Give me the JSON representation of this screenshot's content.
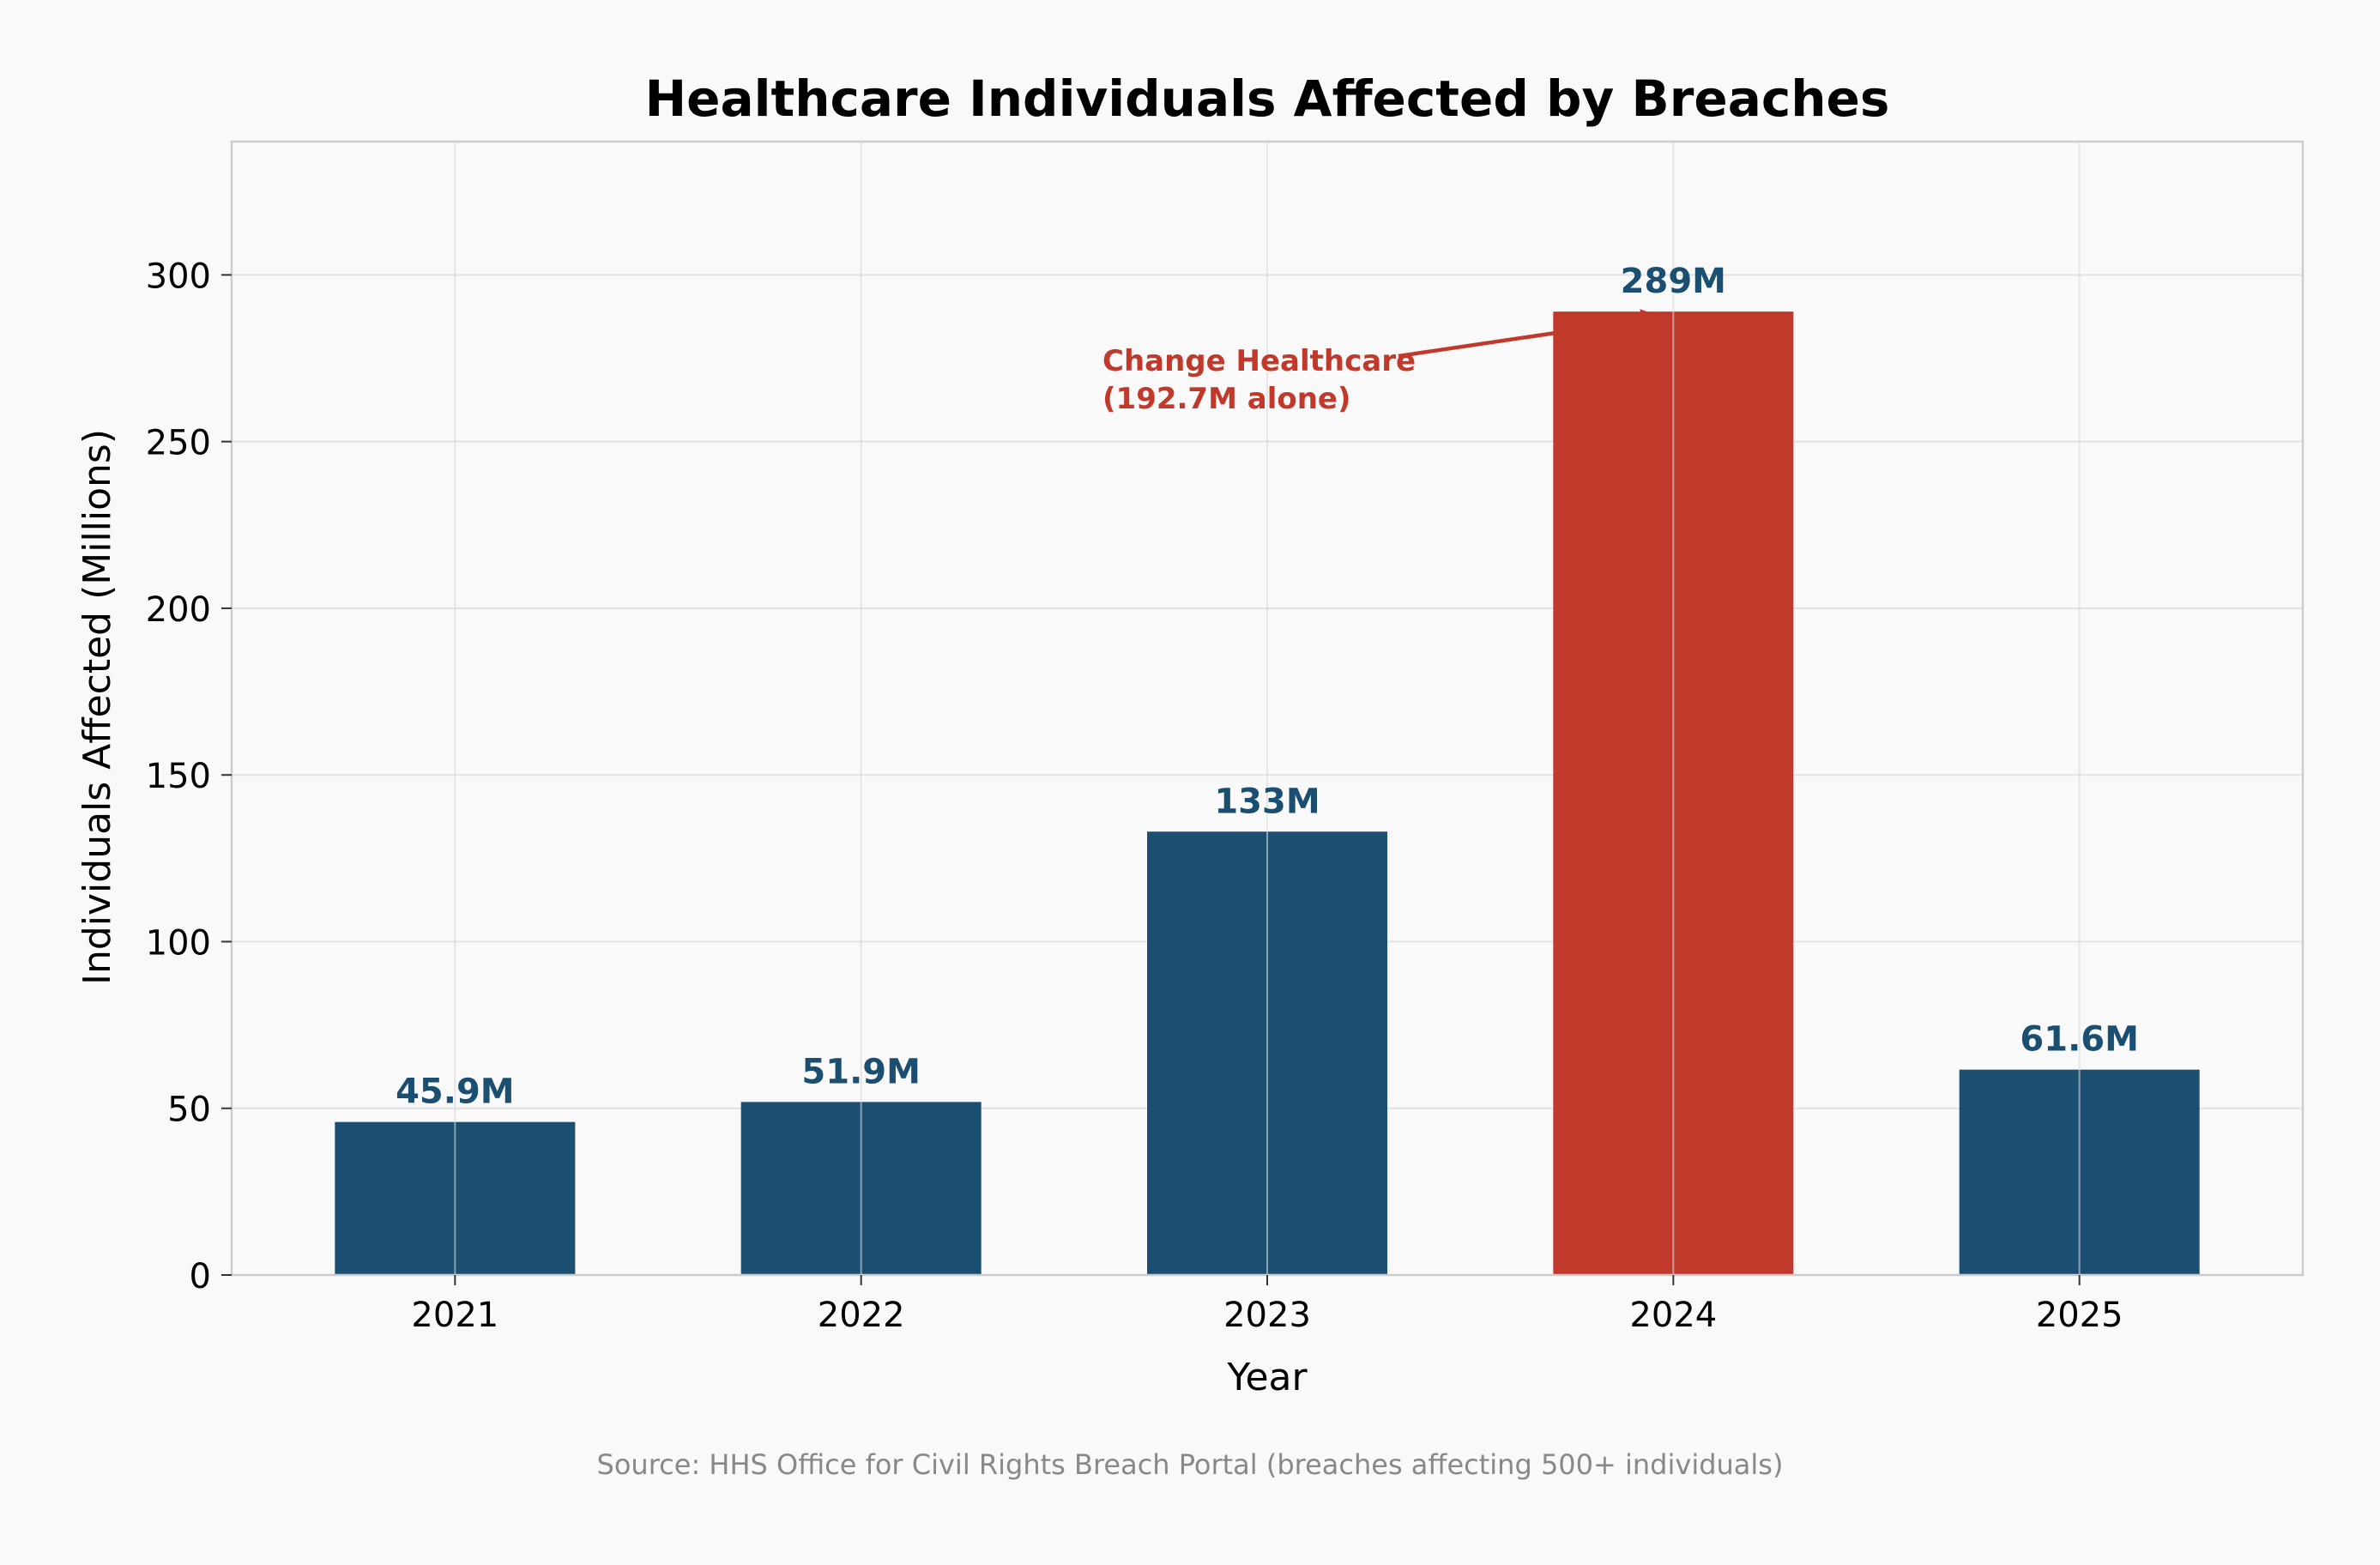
{
  "chart_data": {
    "type": "bar",
    "title": "Healthcare Individuals Affected by Breaches",
    "xlabel": "Year",
    "ylabel": "Individuals Affected (Millions)",
    "categories": [
      "2021",
      "2022",
      "2023",
      "2024",
      "2025"
    ],
    "values": [
      45.9,
      51.9,
      133,
      289,
      61.6
    ],
    "data_labels": [
      "45.9M",
      "51.9M",
      "133M",
      "289M",
      "61.6M"
    ],
    "bar_colors": [
      "#1b4f72",
      "#1b4f72",
      "#1b4f72",
      "#c0392b",
      "#1b4f72"
    ],
    "label_colors": [
      "#1b4f72",
      "#1b4f72",
      "#1b4f72",
      "#1b4f72",
      "#1b4f72"
    ],
    "ylim": [
      0,
      340
    ],
    "yticks": [
      0,
      50,
      100,
      150,
      200,
      250,
      300
    ],
    "grid": true,
    "annotation": {
      "lines": [
        "Change Healthcare",
        "(192.7M alone)"
      ],
      "target_category": "2024",
      "target_value": 289,
      "color": "#c0392b"
    },
    "source": "Source: HHS Office for Civil Rights Breach Portal (breaches affecting 500+ individuals)"
  }
}
